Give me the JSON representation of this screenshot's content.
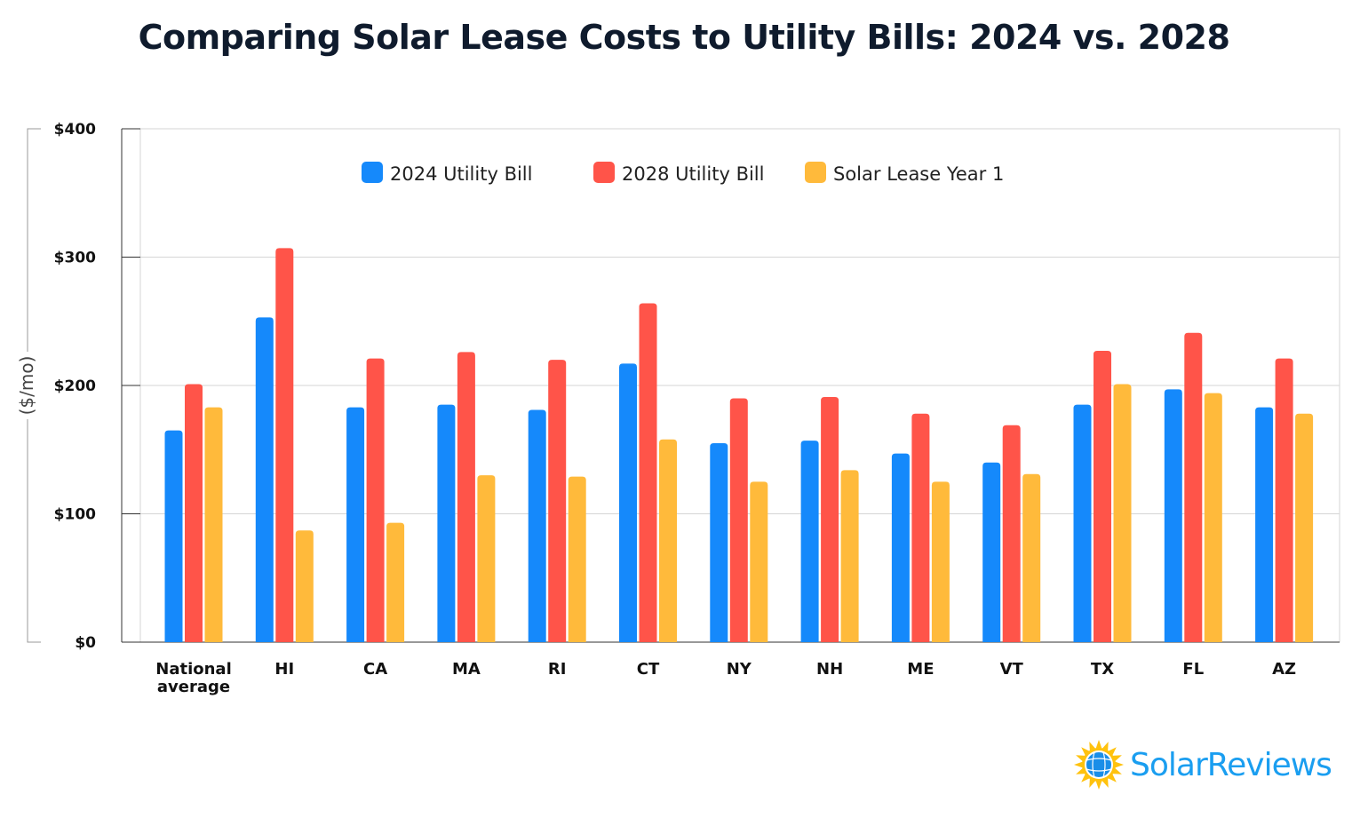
{
  "chart_data": {
    "type": "bar",
    "title": "Comparing Solar Lease Costs to Utility Bills: 2024 vs. 2028",
    "ylabel": "($/mo)",
    "xlabel": "",
    "ylim": [
      0,
      400
    ],
    "yticks": [
      0,
      100,
      200,
      300,
      400
    ],
    "ytick_labels": [
      "$0",
      "$100",
      "$200",
      "$300",
      "$400"
    ],
    "grid": true,
    "legend_position": "top-center",
    "categories": [
      "National average",
      "HI",
      "CA",
      "MA",
      "RI",
      "CT",
      "NY",
      "NH",
      "ME",
      "VT",
      "TX",
      "FL",
      "AZ"
    ],
    "series": [
      {
        "name": "2024 Utility Bill",
        "color": "#1589fb",
        "values": [
          165,
          253,
          183,
          185,
          181,
          217,
          155,
          157,
          147,
          140,
          185,
          197,
          183
        ]
      },
      {
        "name": "2028 Utility Bill",
        "color": "#ff5449",
        "values": [
          201,
          307,
          221,
          226,
          220,
          264,
          190,
          191,
          178,
          169,
          227,
          241,
          221
        ]
      },
      {
        "name": "Solar Lease Year 1",
        "color": "#ffba3b",
        "values": [
          183,
          87,
          93,
          130,
          129,
          158,
          125,
          134,
          125,
          131,
          201,
          194,
          178
        ]
      }
    ]
  },
  "logo": {
    "text": "SolarReviews"
  }
}
